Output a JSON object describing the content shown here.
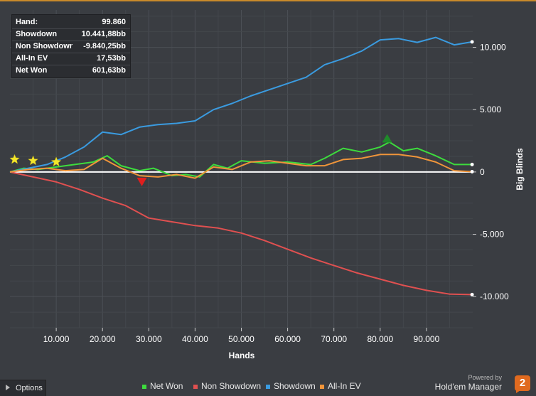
{
  "tooltip": {
    "rows": [
      {
        "label": "Hand:",
        "value": "99.860"
      },
      {
        "label": "Showdown",
        "value": "10.441,88bb"
      },
      {
        "label": "Non Showdown",
        "value": "-9.840,25bb"
      },
      {
        "label": "All-In EV",
        "value": "17,53bb"
      },
      {
        "label": "Net Won",
        "value": "601,63bb"
      }
    ]
  },
  "options": {
    "label": "Options"
  },
  "branding": {
    "powered_by": "Powered by",
    "name": "Hold'em Manager",
    "logo": "2"
  },
  "chart_data": {
    "type": "line",
    "xlabel": "Hands",
    "ylabel": "Big Blinds",
    "xlim": [
      0,
      100000
    ],
    "ylim": [
      -12500,
      13000
    ],
    "x_ticks": [
      10000,
      20000,
      30000,
      40000,
      50000,
      60000,
      70000,
      80000,
      90000
    ],
    "x_tick_labels": [
      "10.000",
      "20.000",
      "30.000",
      "40.000",
      "50.000",
      "60.000",
      "70.000",
      "80.000",
      "90.000"
    ],
    "y_ticks": [
      10000,
      5000,
      0,
      -5000,
      -10000
    ],
    "y_tick_labels": [
      "10.000",
      "5.000",
      "0",
      "-5.000",
      "-10.000"
    ],
    "grid": true,
    "legend_position": "bottom",
    "series": [
      {
        "name": "Net Won",
        "color": "#3ddc3d",
        "x": [
          0,
          3000,
          6000,
          10000,
          14000,
          18000,
          21000,
          24000,
          28000,
          31000,
          35000,
          38000,
          41000,
          44000,
          47000,
          50000,
          55000,
          60000,
          65000,
          68000,
          72000,
          76000,
          80000,
          82000,
          85000,
          88000,
          92000,
          96000,
          99860
        ],
        "y": [
          0,
          300,
          200,
          400,
          600,
          800,
          1300,
          500,
          100,
          300,
          -300,
          -200,
          -400,
          600,
          300,
          900,
          700,
          800,
          600,
          1100,
          1900,
          1600,
          2000,
          2400,
          1700,
          1900,
          1300,
          600,
          600
        ]
      },
      {
        "name": "Non Showdown",
        "color": "#e05050",
        "x": [
          0,
          5000,
          10000,
          15000,
          20000,
          25000,
          30000,
          35000,
          40000,
          45000,
          50000,
          55000,
          60000,
          65000,
          70000,
          75000,
          80000,
          85000,
          90000,
          95000,
          99860
        ],
        "y": [
          0,
          -400,
          -800,
          -1400,
          -2100,
          -2700,
          -3700,
          -4000,
          -4300,
          -4500,
          -4900,
          -5500,
          -6200,
          -6900,
          -7500,
          -8100,
          -8600,
          -9100,
          -9500,
          -9800,
          -9840
        ]
      },
      {
        "name": "Showdown",
        "color": "#3a9be0",
        "x": [
          0,
          4000,
          8000,
          12000,
          16000,
          20000,
          24000,
          28000,
          32000,
          36000,
          40000,
          44000,
          48000,
          52000,
          56000,
          60000,
          64000,
          68000,
          72000,
          76000,
          80000,
          84000,
          88000,
          92000,
          96000,
          99860
        ],
        "y": [
          0,
          300,
          600,
          1200,
          2000,
          3200,
          3000,
          3600,
          3800,
          3900,
          4100,
          5000,
          5500,
          6100,
          6600,
          7100,
          7600,
          8600,
          9100,
          9700,
          10600,
          10700,
          10400,
          10800,
          10200,
          10440
        ]
      },
      {
        "name": "All-In EV",
        "color": "#f0953a",
        "x": [
          0,
          4000,
          8000,
          12000,
          16000,
          20000,
          24000,
          28000,
          32000,
          36000,
          40000,
          44000,
          48000,
          52000,
          56000,
          60000,
          64000,
          68000,
          72000,
          76000,
          80000,
          84000,
          88000,
          92000,
          96000,
          99860
        ],
        "y": [
          0,
          200,
          300,
          100,
          200,
          1100,
          300,
          -300,
          -400,
          -200,
          -500,
          400,
          200,
          800,
          900,
          700,
          500,
          500,
          1000,
          1100,
          1400,
          1400,
          1200,
          800,
          100,
          20
        ]
      }
    ],
    "markers": [
      {
        "type": "star",
        "x": 1000,
        "y": 1000,
        "color": "#f3e62b"
      },
      {
        "type": "star",
        "x": 5000,
        "y": 900,
        "color": "#f3e62b"
      },
      {
        "type": "star",
        "x": 10000,
        "y": 800,
        "color": "#f3e62b"
      },
      {
        "type": "triangle-down",
        "x": 28500,
        "y": -800,
        "color": "#e01e1e"
      },
      {
        "type": "triangle-up",
        "x": 81500,
        "y": 2700,
        "color": "#1f8a2a"
      }
    ]
  }
}
